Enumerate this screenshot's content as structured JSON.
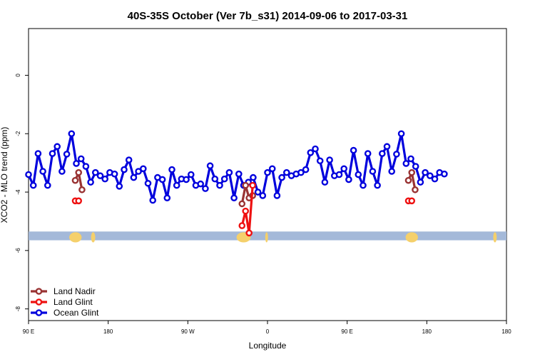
{
  "chart_data": {
    "type": "line",
    "title": "40S-35S October (Ver 7b_s31)   2014-09-06 to 2017-03-31",
    "xlabel": "Longitude",
    "ylabel": "XCO2 - MLO trend (ppm)",
    "xlim": [
      -90,
      180
    ],
    "ylim": [
      -8.4,
      1.6
    ],
    "x_ticks": [
      {
        "value": -90,
        "label": "90 E"
      },
      {
        "value": -45,
        "label": "180"
      },
      {
        "value": 0,
        "label": "90 W"
      },
      {
        "value": 45,
        "label": "0"
      },
      {
        "value": 90,
        "label": "90 E"
      },
      {
        "value": 135,
        "label": "180"
      }
    ],
    "y_ticks": [
      {
        "value": 0,
        "label": "0"
      },
      {
        "value": -2,
        "label": "-2"
      },
      {
        "value": -4,
        "label": "-4"
      },
      {
        "value": -6,
        "label": "-6"
      },
      {
        "value": -8,
        "label": "-8"
      }
    ],
    "grid": false,
    "legend_position": "bottom-left",
    "map_strip": {
      "y_range": [
        -5.65,
        -5.35
      ],
      "ocean_color": "#a4b9d9",
      "land_color": "#f5d06b"
    },
    "series": [
      {
        "name": "Land Nadir",
        "color": "#993333",
        "segments": [
          [
            [
              -63.6,
              -3.6
            ],
            [
              -61.7,
              -3.33
            ],
            [
              -59.8,
              -3.92
            ]
          ],
          [
            [
              30.6,
              -4.4
            ],
            [
              32.6,
              -3.77
            ],
            [
              34.6,
              -4.2
            ],
            [
              36.6,
              -4.12
            ]
          ],
          [
            [
              124.6,
              -3.6
            ],
            [
              126.5,
              -3.33
            ],
            [
              128.4,
              -3.92
            ]
          ]
        ]
      },
      {
        "name": "Land Glint",
        "color": "#ee1111",
        "segments": [
          [
            [
              -63.6,
              -4.3
            ],
            [
              -61.7,
              -4.3
            ]
          ],
          [
            [
              30.6,
              -5.15
            ],
            [
              32.6,
              -4.65
            ],
            [
              34.6,
              -5.4
            ],
            [
              36.6,
              -3.77
            ]
          ],
          [
            [
              124.6,
              -4.3
            ],
            [
              126.5,
              -4.3
            ]
          ]
        ]
      },
      {
        "name": "Ocean Glint",
        "color": "#0000dd",
        "segments": [
          [
            [
              -90,
              -3.4
            ],
            [
              -87.3,
              -3.77
            ],
            [
              -84.6,
              -2.68
            ],
            [
              -81.9,
              -3.29
            ],
            [
              -79.2,
              -3.77
            ],
            [
              -76.5,
              -2.68
            ],
            [
              -73.8,
              -2.44
            ],
            [
              -71.1,
              -3.29
            ],
            [
              -68.4,
              -2.7
            ],
            [
              -65.7,
              -2.0
            ],
            [
              -63.0,
              -3.02
            ],
            [
              -60.3,
              -2.86
            ],
            [
              -57.6,
              -3.12
            ],
            [
              -54.9,
              -3.66
            ],
            [
              -52.2,
              -3.33
            ],
            [
              -49.5,
              -3.44
            ],
            [
              -46.8,
              -3.55
            ],
            [
              -44.1,
              -3.33
            ],
            [
              -41.4,
              -3.38
            ],
            [
              -38.7,
              -3.8
            ],
            [
              -36.0,
              -3.23
            ],
            [
              -33.3,
              -2.9
            ],
            [
              -30.6,
              -3.5
            ],
            [
              -27.9,
              -3.29
            ],
            [
              -25.2,
              -3.2
            ],
            [
              -22.5,
              -3.7
            ],
            [
              -19.8,
              -4.28
            ],
            [
              -17.1,
              -3.5
            ],
            [
              -14.4,
              -3.57
            ],
            [
              -11.7,
              -4.2
            ],
            [
              -9.0,
              -3.23
            ],
            [
              -6.3,
              -3.77
            ],
            [
              -3.6,
              -3.55
            ],
            [
              -0.9,
              -3.57
            ],
            [
              1.8,
              -3.4
            ],
            [
              4.5,
              -3.77
            ],
            [
              7.2,
              -3.72
            ],
            [
              9.9,
              -3.88
            ],
            [
              12.6,
              -3.1
            ],
            [
              15.3,
              -3.55
            ],
            [
              18.0,
              -3.77
            ],
            [
              20.7,
              -3.55
            ],
            [
              23.4,
              -3.33
            ],
            [
              26.1,
              -4.2
            ],
            [
              28.8,
              -3.38
            ],
            [
              31.5,
              -3.77
            ],
            [
              34.2,
              -3.66
            ],
            [
              36.9,
              -3.5
            ],
            [
              39.6,
              -4.0
            ],
            [
              42.3,
              -4.12
            ],
            [
              45.0,
              -3.33
            ],
            [
              47.7,
              -3.2
            ],
            [
              50.4,
              -4.12
            ],
            [
              53.1,
              -3.5
            ],
            [
              55.8,
              -3.33
            ],
            [
              58.5,
              -3.44
            ],
            [
              61.2,
              -3.38
            ],
            [
              63.9,
              -3.33
            ],
            [
              66.6,
              -3.23
            ],
            [
              69.3,
              -2.65
            ],
            [
              72.0,
              -2.52
            ],
            [
              74.7,
              -2.93
            ],
            [
              77.4,
              -3.66
            ],
            [
              80.1,
              -2.9
            ],
            [
              82.8,
              -3.44
            ],
            [
              85.5,
              -3.4
            ],
            [
              88.2,
              -3.2
            ],
            [
              90.9,
              -3.57
            ],
            [
              93.6,
              -2.57
            ],
            [
              96.3,
              -3.4
            ],
            [
              99.0,
              -3.77
            ],
            [
              101.7,
              -2.68
            ],
            [
              104.4,
              -3.29
            ],
            [
              107.1,
              -3.77
            ],
            [
              109.8,
              -2.68
            ],
            [
              112.5,
              -2.44
            ],
            [
              115.2,
              -3.29
            ],
            [
              117.9,
              -2.7
            ],
            [
              120.6,
              -2.0
            ],
            [
              123.3,
              -3.02
            ],
            [
              126.0,
              -2.86
            ],
            [
              128.7,
              -3.12
            ],
            [
              131.4,
              -3.66
            ],
            [
              134.1,
              -3.33
            ],
            [
              136.8,
              -3.44
            ],
            [
              139.5,
              -3.55
            ],
            [
              142.2,
              -3.33
            ],
            [
              144.9,
              -3.38
            ]
          ]
        ]
      }
    ]
  }
}
